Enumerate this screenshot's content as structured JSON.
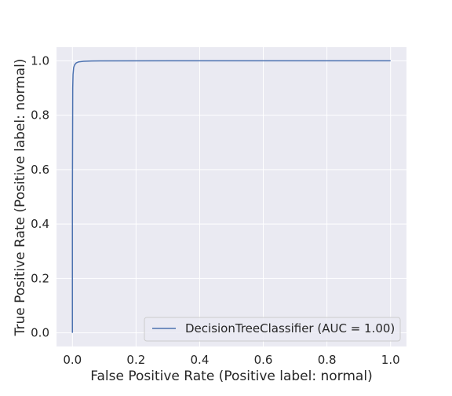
{
  "chart_data": {
    "type": "line",
    "title": "",
    "xlabel": "False Positive Rate (Positive label: normal)",
    "ylabel": "True Positive Rate (Positive label: normal)",
    "xlim": [
      -0.05,
      1.05
    ],
    "ylim": [
      -0.05,
      1.05
    ],
    "x_ticks": [
      0.0,
      0.2,
      0.4,
      0.6,
      0.8,
      1.0
    ],
    "y_ticks": [
      0.0,
      0.2,
      0.4,
      0.6,
      0.8,
      1.0
    ],
    "x_tick_labels": [
      "0.0",
      "0.2",
      "0.4",
      "0.6",
      "0.8",
      "1.0"
    ],
    "y_tick_labels": [
      "0.0",
      "0.2",
      "0.4",
      "0.6",
      "0.8",
      "1.0"
    ],
    "grid": true,
    "legend_position": "lower-right",
    "background_color": "#eaeaf2",
    "series": [
      {
        "name": "DecisionTreeClassifier (AUC = 1.00)",
        "color": "#4c72b0",
        "x": [
          0.0,
          0.0,
          0.001,
          0.002,
          0.004,
          0.007,
          0.012,
          0.02,
          0.035,
          0.06,
          0.1,
          0.3,
          0.6,
          1.0
        ],
        "y": [
          0.0,
          0.5,
          0.9,
          0.95,
          0.975,
          0.985,
          0.992,
          0.996,
          0.998,
          0.999,
          0.9995,
          1.0,
          1.0,
          1.0
        ]
      }
    ]
  }
}
